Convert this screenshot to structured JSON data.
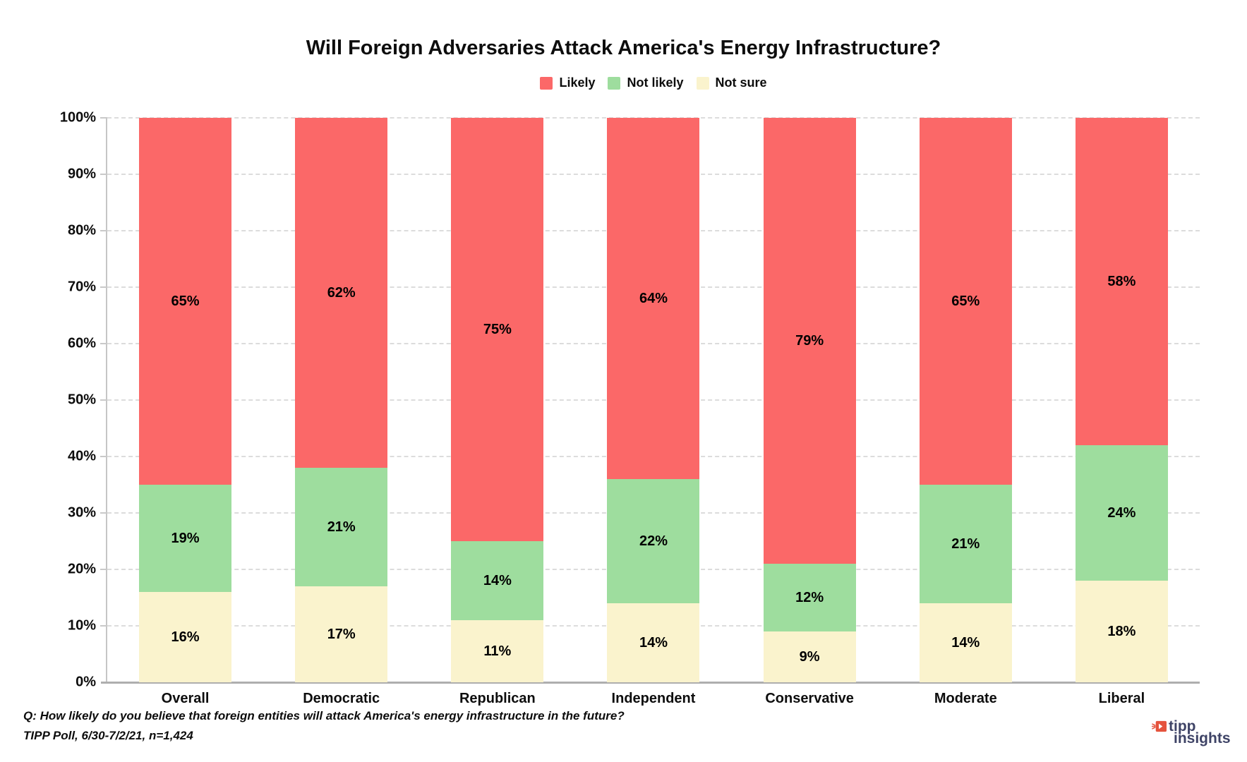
{
  "chart_data": {
    "type": "bar",
    "stacked": true,
    "title": "Will Foreign Adversaries Attack America's Energy Infrastructure?",
    "categories": [
      "Overall",
      "Democratic",
      "Republican",
      "Independent",
      "Conservative",
      "Moderate",
      "Liberal"
    ],
    "series": [
      {
        "name": "Likely",
        "color": "#fb6868",
        "values": [
          65,
          62,
          75,
          64,
          79,
          65,
          58
        ]
      },
      {
        "name": "Not likely",
        "color": "#9edd9e",
        "values": [
          19,
          21,
          14,
          22,
          12,
          21,
          24
        ]
      },
      {
        "name": "Not sure",
        "color": "#faf3cd",
        "values": [
          16,
          17,
          11,
          14,
          9,
          14,
          18
        ]
      }
    ],
    "y_ticks": [
      "0%",
      "10%",
      "20%",
      "30%",
      "40%",
      "50%",
      "60%",
      "70%",
      "80%",
      "90%",
      "100%"
    ],
    "ylim": [
      0,
      100
    ],
    "grid": "horizontal dashed",
    "legend_position": "top center",
    "value_label_suffix": "%"
  },
  "footnote": {
    "question": "Q: How likely do you believe that foreign entities will attack America's energy infrastructure in the future?",
    "source": "TIPP Poll, 6/30-7/2/21, n=1,424"
  },
  "brand": {
    "line1": "tipp",
    "line2": "insights",
    "text_color": "#3e4366",
    "icon_color": "#e5533d"
  }
}
